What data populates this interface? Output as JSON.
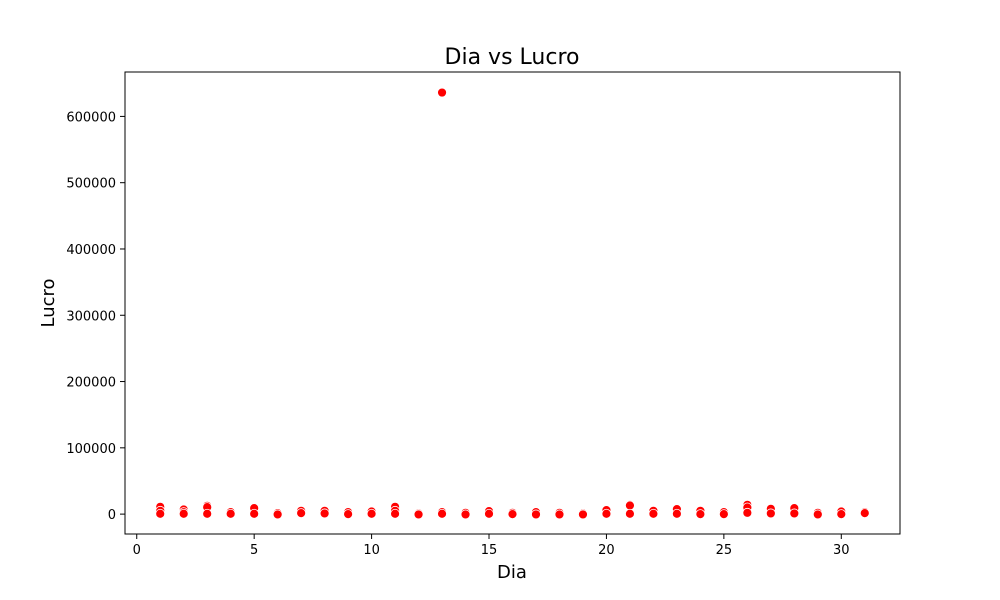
{
  "chart_data": {
    "type": "scatter",
    "title": "Dia vs Lucro",
    "xlabel": "Dia",
    "ylabel": "Lucro",
    "xlim": [
      -0.5,
      32.5
    ],
    "ylim": [
      -30000,
      667000
    ],
    "xticks": [
      0,
      5,
      10,
      15,
      20,
      25,
      30
    ],
    "yticks": [
      0,
      100000,
      200000,
      300000,
      400000,
      500000,
      600000
    ],
    "grid": false,
    "marker_color": "#ff0000",
    "points": [
      {
        "x": 1,
        "y": 11000
      },
      {
        "x": 1,
        "y": 5000
      },
      {
        "x": 1,
        "y": 500
      },
      {
        "x": 2,
        "y": 7000
      },
      {
        "x": 2,
        "y": 3000
      },
      {
        "x": 2,
        "y": 500
      },
      {
        "x": 3,
        "y": 12500
      },
      {
        "x": 3,
        "y": 10500
      },
      {
        "x": 3,
        "y": 500
      },
      {
        "x": 4,
        "y": 3000
      },
      {
        "x": 4,
        "y": 500
      },
      {
        "x": 5,
        "y": 9000
      },
      {
        "x": 5,
        "y": 500
      },
      {
        "x": 6,
        "y": 1500
      },
      {
        "x": 6,
        "y": -500
      },
      {
        "x": 7,
        "y": 5000
      },
      {
        "x": 7,
        "y": 1500
      },
      {
        "x": 8,
        "y": 5000
      },
      {
        "x": 8,
        "y": 1000
      },
      {
        "x": 9,
        "y": 3000
      },
      {
        "x": 9,
        "y": 0
      },
      {
        "x": 10,
        "y": 4000
      },
      {
        "x": 10,
        "y": 500
      },
      {
        "x": 11,
        "y": 11000
      },
      {
        "x": 11,
        "y": 5000
      },
      {
        "x": 11,
        "y": 500
      },
      {
        "x": 12,
        "y": 1000
      },
      {
        "x": 12,
        "y": -500
      },
      {
        "x": 13,
        "y": 636000
      },
      {
        "x": 13,
        "y": 3000
      },
      {
        "x": 13,
        "y": 500
      },
      {
        "x": 14,
        "y": 2000
      },
      {
        "x": 14,
        "y": -500
      },
      {
        "x": 15,
        "y": 4500
      },
      {
        "x": 15,
        "y": 500
      },
      {
        "x": 16,
        "y": 2000
      },
      {
        "x": 16,
        "y": 0
      },
      {
        "x": 17,
        "y": 3000
      },
      {
        "x": 17,
        "y": -500
      },
      {
        "x": 18,
        "y": 2000
      },
      {
        "x": 18,
        "y": -500
      },
      {
        "x": 19,
        "y": 1000
      },
      {
        "x": 19,
        "y": -500
      },
      {
        "x": 20,
        "y": 6000
      },
      {
        "x": 20,
        "y": 500
      },
      {
        "x": 21,
        "y": 14000
      },
      {
        "x": 21,
        "y": 13000
      },
      {
        "x": 21,
        "y": 500
      },
      {
        "x": 22,
        "y": 5000
      },
      {
        "x": 22,
        "y": 500
      },
      {
        "x": 23,
        "y": 7500
      },
      {
        "x": 23,
        "y": 500
      },
      {
        "x": 24,
        "y": 5000
      },
      {
        "x": 24,
        "y": 0
      },
      {
        "x": 25,
        "y": 3000
      },
      {
        "x": 25,
        "y": 0
      },
      {
        "x": 26,
        "y": 14000
      },
      {
        "x": 26,
        "y": 10000
      },
      {
        "x": 26,
        "y": 2000
      },
      {
        "x": 27,
        "y": 8000
      },
      {
        "x": 27,
        "y": 1000
      },
      {
        "x": 28,
        "y": 9000
      },
      {
        "x": 28,
        "y": 1000
      },
      {
        "x": 29,
        "y": 2000
      },
      {
        "x": 29,
        "y": -500
      },
      {
        "x": 30,
        "y": 4000
      },
      {
        "x": 30,
        "y": 0
      },
      {
        "x": 31,
        "y": 3000
      },
      {
        "x": 31,
        "y": 1500
      }
    ]
  }
}
